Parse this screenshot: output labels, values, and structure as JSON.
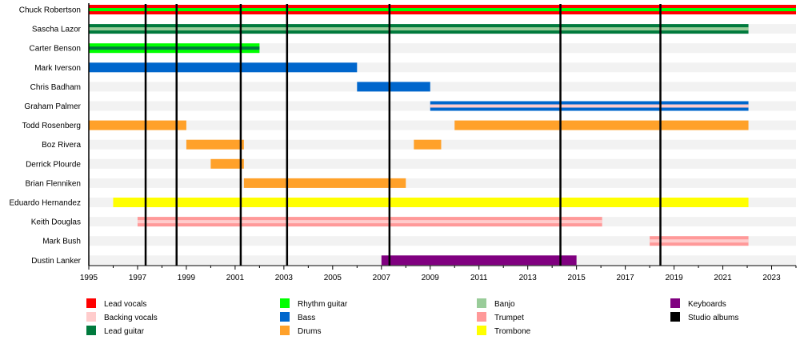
{
  "chart_data": {
    "type": "timeline",
    "xlim": [
      1995,
      2024
    ],
    "x_ticks": [
      "1995",
      "1997",
      "1999",
      "2001",
      "2003",
      "2005",
      "2007",
      "2009",
      "2011",
      "2013",
      "2015",
      "2017",
      "2019",
      "2021",
      "2023"
    ],
    "roles": {
      "lead_vocals": {
        "label": "Lead vocals",
        "color": "#ff0000"
      },
      "backing_vocals": {
        "label": "Backing vocals",
        "color": "#ffcccc"
      },
      "lead_guitar": {
        "label": "Lead guitar",
        "color": "#007a3d"
      },
      "rhythm_guitar": {
        "label": "Rhythm guitar",
        "color": "#00ff00"
      },
      "bass": {
        "label": "Bass",
        "color": "#0066cc"
      },
      "drums": {
        "label": "Drums",
        "color": "#ffa12a"
      },
      "banjo": {
        "label": "Banjo",
        "color": "#99cc99"
      },
      "trumpet": {
        "label": "Trumpet",
        "color": "#ff9999"
      },
      "trombone": {
        "label": "Trombone",
        "color": "#ffff00"
      },
      "keyboards": {
        "label": "Keyboards",
        "color": "#800080"
      },
      "studio_albums": {
        "label": "Studio albums",
        "color": "#000000"
      }
    },
    "legend_columns": [
      [
        "lead_vocals",
        "backing_vocals",
        "lead_guitar"
      ],
      [
        "rhythm_guitar",
        "bass",
        "drums"
      ],
      [
        "banjo",
        "trumpet",
        "trombone"
      ],
      [
        "keyboards",
        "studio_albums"
      ]
    ],
    "legend_placement": "bottom",
    "studio_albums": [
      1997.33,
      1998.6,
      2001.23,
      2003.13,
      2007.33,
      2014.34,
      2018.44
    ],
    "members": [
      {
        "name": "Chuck Robertson",
        "periods": [
          {
            "start": 1995,
            "end": 2024,
            "role": "lead_vocals",
            "secondary": "rhythm_guitar"
          }
        ]
      },
      {
        "name": "Sascha Lazor",
        "periods": [
          {
            "start": 1995,
            "end": 2022.05,
            "role": "lead_guitar",
            "secondary": "banjo"
          }
        ]
      },
      {
        "name": "Carter Benson",
        "periods": [
          {
            "start": 1995,
            "end": 2002,
            "role": "rhythm_guitar",
            "secondary": "lead_guitar"
          }
        ]
      },
      {
        "name": "Mark Iverson",
        "periods": [
          {
            "start": 1995,
            "end": 2006,
            "role": "bass"
          }
        ]
      },
      {
        "name": "Chris Badham",
        "periods": [
          {
            "start": 2006,
            "end": 2009,
            "role": "bass"
          }
        ]
      },
      {
        "name": "Graham Palmer",
        "periods": [
          {
            "start": 2009,
            "end": 2022.05,
            "role": "bass",
            "secondary": "backing_vocals"
          }
        ]
      },
      {
        "name": "Todd Rosenberg",
        "periods": [
          {
            "start": 1995,
            "end": 1999,
            "role": "drums"
          },
          {
            "start": 2010,
            "end": 2022.05,
            "role": "drums"
          }
        ]
      },
      {
        "name": "Boz Rivera",
        "periods": [
          {
            "start": 1999,
            "end": 2001.36,
            "role": "drums"
          },
          {
            "start": 2008.33,
            "end": 2009.45,
            "role": "drums"
          }
        ]
      },
      {
        "name": "Derrick Plourde",
        "periods": [
          {
            "start": 2000,
            "end": 2001.36,
            "role": "drums"
          }
        ]
      },
      {
        "name": "Brian Flenniken",
        "periods": [
          {
            "start": 2001.36,
            "end": 2008,
            "role": "drums"
          }
        ]
      },
      {
        "name": "Eduardo Hernandez",
        "periods": [
          {
            "start": 1996,
            "end": 2022.05,
            "role": "trombone"
          }
        ]
      },
      {
        "name": "Keith Douglas",
        "periods": [
          {
            "start": 1997,
            "end": 2016.05,
            "role": "trumpet",
            "secondary": "backing_vocals"
          }
        ]
      },
      {
        "name": "Mark Bush",
        "periods": [
          {
            "start": 2018,
            "end": 2022.05,
            "role": "trumpet",
            "secondary": "backing_vocals"
          }
        ]
      },
      {
        "name": "Dustin Lanker",
        "periods": [
          {
            "start": 2007,
            "end": 2015,
            "role": "keyboards"
          }
        ]
      }
    ]
  }
}
